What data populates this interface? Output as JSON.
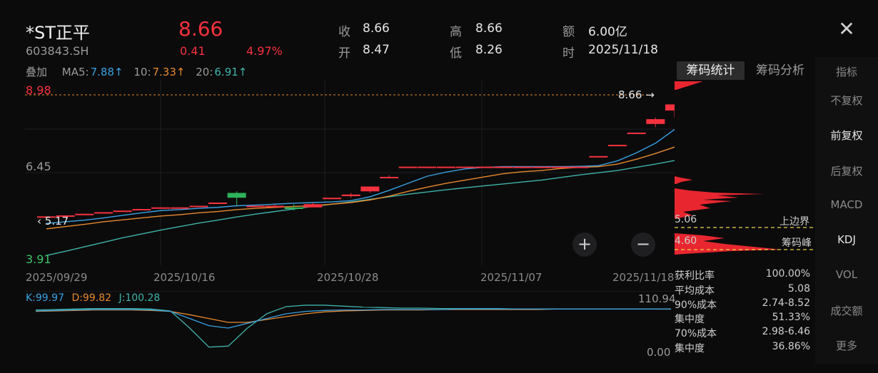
{
  "header": {
    "name": "*ST正平",
    "code": "603843.SH",
    "price": "8.66",
    "change": "0.41",
    "change_pct": "4.97%",
    "fields": [
      {
        "k": "收",
        "v": "8.66"
      },
      {
        "k": "开",
        "v": "8.47"
      },
      {
        "k": "高",
        "v": "8.66"
      },
      {
        "k": "低",
        "v": "8.26"
      },
      {
        "k": "额",
        "v": "6.00亿"
      },
      {
        "k": "时",
        "v": "2025/11/18"
      }
    ],
    "close_icon": "close-icon"
  },
  "ma": {
    "overlay_label": "叠加",
    "ma5_label": "MA5:",
    "ma5_value": "7.88↑",
    "ma10_label": "10:",
    "ma10_value": "7.33↑",
    "ma20_label": "20:",
    "ma20_value": "6.91↑",
    "colors": {
      "ma5": "#3aa0e0",
      "ma10": "#e8892e",
      "ma20": "#3fb3a8"
    }
  },
  "axis": {
    "top_price": "8.98",
    "mid_price": "6.45",
    "low_price": "3.91",
    "last_price_tag": "8.66",
    "low_marker": "5.17",
    "dates": [
      "2025/09/29",
      "2025/10/16",
      "2025/10/28",
      "2025/11/07",
      "2025/11/18"
    ]
  },
  "chips": {
    "tab_stats": "筹码统计",
    "tab_analysis": "筹码分析",
    "upper_price": "5.06",
    "upper_label": "上边界",
    "peak_price": "4.60",
    "peak_label": "筹码峰",
    "stats": [
      {
        "k": "获利比率",
        "v": "100.00%"
      },
      {
        "k": "平均成本",
        "v": "5.08"
      },
      {
        "k": "90%成本",
        "v": "2.74-8.52"
      },
      {
        "k": "集中度",
        "v": "51.33%"
      },
      {
        "k": "70%成本",
        "v": "2.98-6.46"
      },
      {
        "k": "集中度",
        "v": "36.86%"
      }
    ]
  },
  "kdj": {
    "k_label": "K:99.97",
    "d_label": "D:99.82",
    "j_label": "J:100.28",
    "max": "110.94",
    "min": "0.00"
  },
  "sidebar": {
    "items": [
      {
        "label": "指标",
        "active": false
      },
      {
        "label": "不复权",
        "active": false
      },
      {
        "label": "前复权",
        "active": true
      },
      {
        "label": "后复权",
        "active": false
      },
      {
        "label": "MACD",
        "active": false
      },
      {
        "label": "KDJ",
        "active": true
      },
      {
        "label": "VOL",
        "active": false
      },
      {
        "label": "成交额",
        "active": false
      },
      {
        "label": "更多",
        "active": false
      }
    ]
  },
  "chart_data": {
    "type": "candlestick",
    "ylim": [
      3.91,
      8.98
    ],
    "candles": [
      {
        "o": 5.17,
        "c": 5.17,
        "h": 5.17,
        "l": 5.17
      },
      {
        "o": 5.2,
        "c": 5.2,
        "h": 5.2,
        "l": 5.2
      },
      {
        "o": 5.25,
        "c": 5.25,
        "h": 5.25,
        "l": 5.25
      },
      {
        "o": 5.3,
        "c": 5.3,
        "h": 5.3,
        "l": 5.3
      },
      {
        "o": 5.35,
        "c": 5.35,
        "h": 5.35,
        "l": 5.35
      },
      {
        "o": 5.4,
        "c": 5.4,
        "h": 5.4,
        "l": 5.4
      },
      {
        "o": 5.45,
        "c": 5.45,
        "h": 5.45,
        "l": 5.45
      },
      {
        "o": 5.45,
        "c": 5.45,
        "h": 5.45,
        "l": 5.45
      },
      {
        "o": 5.5,
        "c": 5.5,
        "h": 5.5,
        "l": 5.5
      },
      {
        "o": 5.6,
        "c": 5.6,
        "h": 5.6,
        "l": 5.6
      },
      {
        "o": 5.9,
        "c": 5.75,
        "h": 5.95,
        "l": 5.5
      },
      {
        "o": 5.5,
        "c": 5.5,
        "h": 5.5,
        "l": 5.5
      },
      {
        "o": 5.5,
        "c": 5.5,
        "h": 5.55,
        "l": 5.45
      },
      {
        "o": 5.45,
        "c": 5.4,
        "h": 5.55,
        "l": 5.35
      },
      {
        "o": 5.45,
        "c": 5.55,
        "h": 5.6,
        "l": 5.45
      },
      {
        "o": 5.75,
        "c": 5.75,
        "h": 5.75,
        "l": 5.75
      },
      {
        "o": 5.8,
        "c": 5.85,
        "h": 5.9,
        "l": 5.75
      },
      {
        "o": 5.95,
        "c": 6.1,
        "h": 6.1,
        "l": 5.9
      },
      {
        "o": 6.4,
        "c": 6.4,
        "h": 6.45,
        "l": 6.35
      },
      {
        "o": 6.72,
        "c": 6.72,
        "h": 6.72,
        "l": 6.72
      },
      {
        "o": 6.72,
        "c": 6.72,
        "h": 6.72,
        "l": 6.72
      },
      {
        "o": 6.72,
        "c": 6.72,
        "h": 6.72,
        "l": 6.72
      },
      {
        "o": 6.72,
        "c": 6.72,
        "h": 6.72,
        "l": 6.72
      },
      {
        "o": 6.72,
        "c": 6.72,
        "h": 6.72,
        "l": 6.72
      },
      {
        "o": 6.72,
        "c": 6.72,
        "h": 6.72,
        "l": 6.72
      },
      {
        "o": 6.72,
        "c": 6.72,
        "h": 6.72,
        "l": 6.72
      },
      {
        "o": 6.72,
        "c": 6.72,
        "h": 6.72,
        "l": 6.72
      },
      {
        "o": 6.72,
        "c": 6.72,
        "h": 6.72,
        "l": 6.72
      },
      {
        "o": 6.72,
        "c": 6.72,
        "h": 6.72,
        "l": 6.72
      },
      {
        "o": 7.05,
        "c": 7.05,
        "h": 7.05,
        "l": 7.05
      },
      {
        "o": 7.4,
        "c": 7.4,
        "h": 7.4,
        "l": 7.4
      },
      {
        "o": 7.78,
        "c": 7.78,
        "h": 7.78,
        "l": 7.78
      },
      {
        "o": 8.05,
        "c": 8.2,
        "h": 8.25,
        "l": 7.95
      },
      {
        "o": 8.47,
        "c": 8.66,
        "h": 8.66,
        "l": 8.26
      }
    ],
    "ma5": [
      4.95,
      5.0,
      5.05,
      5.12,
      5.2,
      5.28,
      5.35,
      5.38,
      5.42,
      5.45,
      5.5,
      5.52,
      5.55,
      5.58,
      5.6,
      5.62,
      5.66,
      5.78,
      5.98,
      6.2,
      6.42,
      6.55,
      6.65,
      6.7,
      6.72,
      6.72,
      6.72,
      6.72,
      6.73,
      6.75,
      6.9,
      7.15,
      7.45,
      7.88
    ],
    "ma10": [
      4.78,
      4.85,
      4.92,
      5.0,
      5.06,
      5.12,
      5.18,
      5.22,
      5.28,
      5.32,
      5.38,
      5.42,
      5.45,
      5.48,
      5.5,
      5.55,
      5.6,
      5.68,
      5.8,
      5.95,
      6.08,
      6.2,
      6.3,
      6.4,
      6.5,
      6.56,
      6.6,
      6.66,
      6.7,
      6.72,
      6.8,
      6.95,
      7.13,
      7.33
    ],
    "ma20": [
      3.95,
      4.08,
      4.22,
      4.36,
      4.5,
      4.62,
      4.74,
      4.85,
      4.96,
      5.05,
      5.15,
      5.24,
      5.32,
      5.4,
      5.48,
      5.55,
      5.62,
      5.7,
      5.78,
      5.86,
      5.93,
      6.0,
      6.06,
      6.12,
      6.18,
      6.24,
      6.3,
      6.38,
      6.46,
      6.53,
      6.6,
      6.7,
      6.8,
      6.91
    ],
    "kdj_k": [
      96,
      97,
      98,
      99,
      99,
      99,
      98,
      95,
      80,
      65,
      60,
      70,
      80,
      90,
      95,
      97,
      98,
      98,
      99,
      99,
      99,
      99,
      100,
      100,
      100,
      100,
      100,
      100,
      100,
      100,
      100,
      100,
      100,
      99.97
    ],
    "kdj_d": [
      95,
      96,
      97,
      98,
      98,
      98,
      97,
      95,
      88,
      80,
      72,
      72,
      78,
      84,
      90,
      94,
      96,
      97,
      98,
      98,
      98,
      99,
      99,
      99,
      99,
      99,
      99,
      100,
      100,
      100,
      100,
      100,
      100,
      99.82
    ],
    "kdj_j": [
      98,
      99,
      100,
      101,
      101,
      101,
      100,
      96,
      60,
      20,
      22,
      60,
      90,
      105,
      108,
      108,
      106,
      104,
      103,
      102,
      102,
      101,
      101,
      101,
      101,
      100,
      100,
      100,
      100,
      100,
      100,
      100,
      100,
      100.28
    ],
    "kdj_ylim": [
      0,
      110.94
    ]
  }
}
